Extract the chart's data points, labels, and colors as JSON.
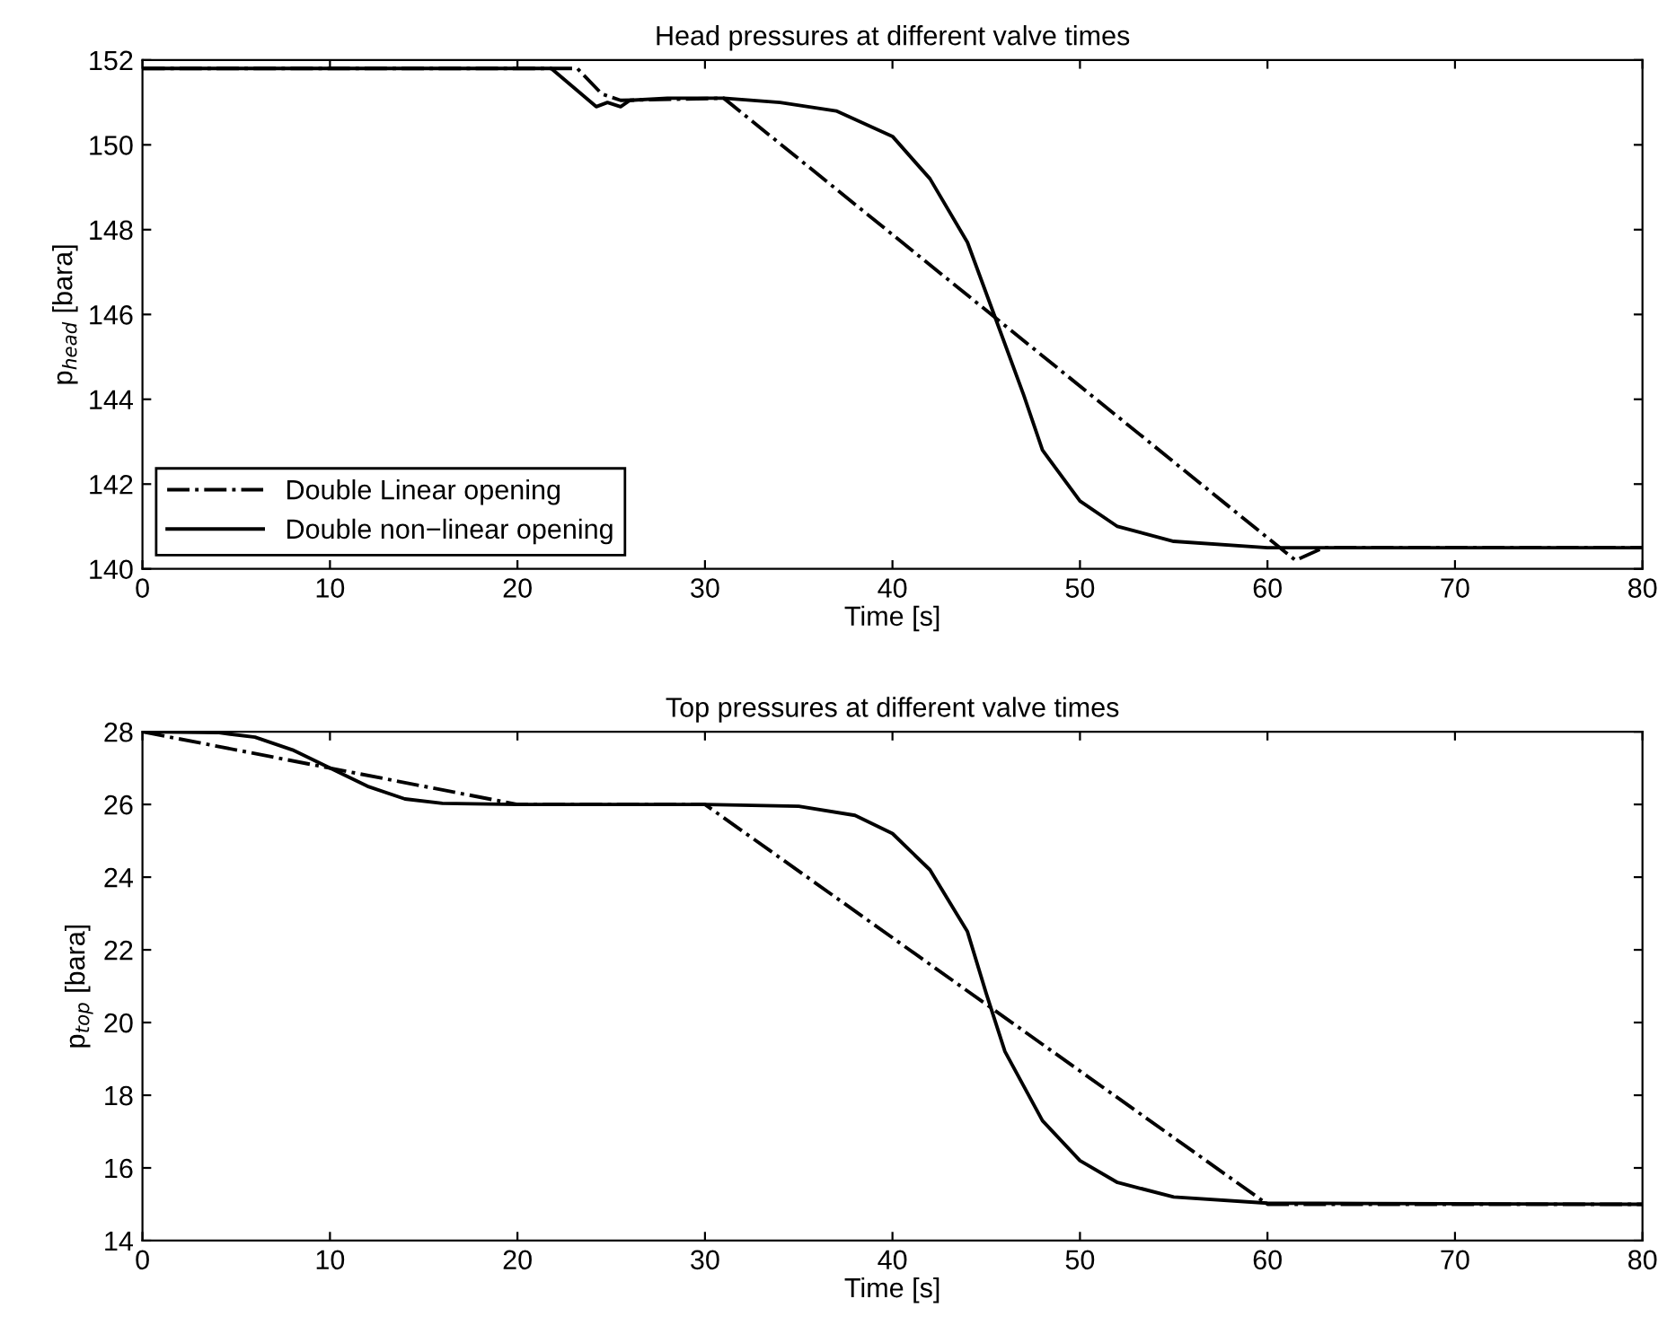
{
  "chart_data": [
    {
      "type": "line",
      "title": "Head pressures at different valve times",
      "xlabel": "Time [s]",
      "ylabel": "p$_{head}$ [bara]",
      "xlim": [
        0,
        80
      ],
      "xticks": [
        0,
        10,
        20,
        30,
        40,
        50,
        60,
        70,
        80
      ],
      "ylim": [
        140,
        152
      ],
      "yticks": [
        140,
        142,
        144,
        146,
        148,
        150,
        152
      ],
      "grid": false,
      "legend": "bottom left",
      "marker": "none",
      "series": [
        {
          "name": "Double Linear opening",
          "color": "#000000",
          "line_style": "dashdot",
          "x": [
            0,
            23.2,
            24.5,
            25.5,
            31,
            61.5,
            63,
            80
          ],
          "values": [
            151.8,
            151.8,
            151.2,
            151.05,
            151.1,
            140.2,
            140.5,
            140.5
          ]
        },
        {
          "name": "Double non−linear opening",
          "color": "#000000",
          "line_style": "solid",
          "x": [
            0,
            21.8,
            24.2,
            24.8,
            25.5,
            26,
            28,
            31,
            34,
            37,
            40,
            42,
            44,
            45.5,
            47,
            48,
            50,
            52,
            55,
            60,
            80
          ],
          "values": [
            151.8,
            151.8,
            150.9,
            151.0,
            150.9,
            151.05,
            151.1,
            151.1,
            151.0,
            150.8,
            150.2,
            149.2,
            147.7,
            145.9,
            144.1,
            142.8,
            141.6,
            141.0,
            140.65,
            140.5,
            140.5
          ]
        }
      ]
    },
    {
      "type": "line",
      "title": "Top pressures at different valve times",
      "xlabel": "Time [s]",
      "ylabel": "p$_{top}$ [bara]",
      "xlim": [
        0,
        80
      ],
      "xticks": [
        0,
        10,
        20,
        30,
        40,
        50,
        60,
        70,
        80
      ],
      "ylim": [
        14,
        28
      ],
      "yticks": [
        14,
        16,
        18,
        20,
        22,
        24,
        26,
        28
      ],
      "grid": false,
      "legend": false,
      "marker": "none",
      "series": [
        {
          "color": "#000000",
          "line_style": "dashdot",
          "x": [
            0,
            10,
            20,
            30,
            60,
            80
          ],
          "values": [
            28,
            27,
            26,
            26,
            15,
            15
          ]
        },
        {
          "color": "#000000",
          "line_style": "solid",
          "x": [
            0,
            4,
            6,
            8,
            10,
            12,
            14,
            16,
            20,
            30,
            35,
            38,
            40,
            42,
            44,
            45,
            46,
            48,
            50,
            52,
            55,
            60,
            80
          ],
          "values": [
            28,
            27.98,
            27.85,
            27.5,
            27.0,
            26.5,
            26.15,
            26.03,
            26,
            26,
            25.95,
            25.7,
            25.2,
            24.2,
            22.5,
            20.8,
            19.2,
            17.3,
            16.2,
            15.6,
            15.2,
            15.03,
            15
          ]
        }
      ]
    }
  ]
}
